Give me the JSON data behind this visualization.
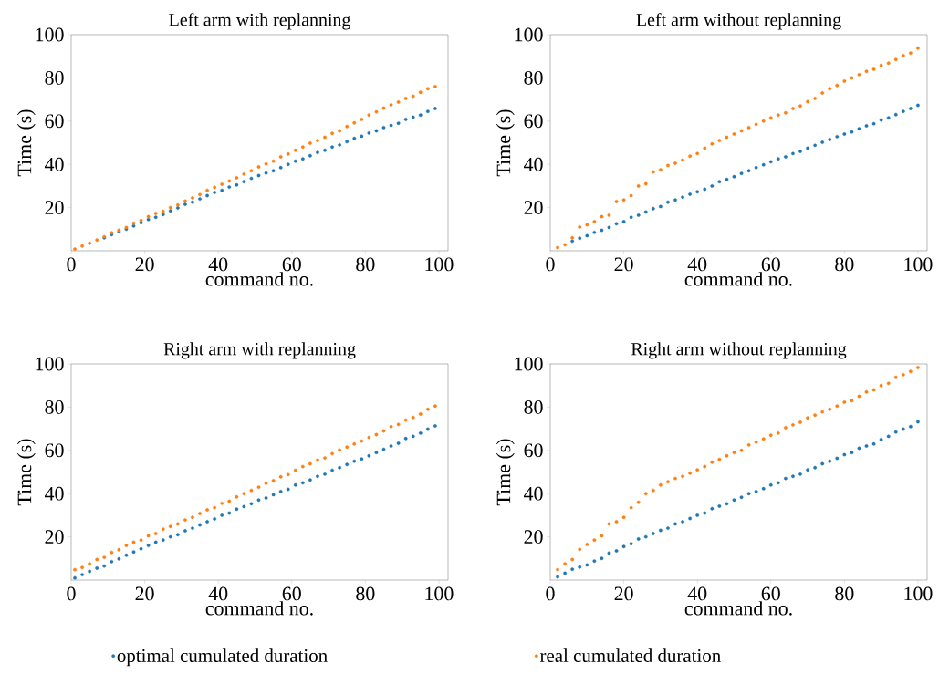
{
  "chart_data": [
    {
      "type": "scatter",
      "title": "Left arm with replanning",
      "xlabel": "command no.",
      "ylabel": "Time (s)",
      "marker": "circle",
      "xlim": [
        0,
        102.5
      ],
      "ylim": [
        0,
        100
      ],
      "xticks": [
        0,
        20,
        40,
        60,
        80,
        100
      ],
      "yticks": [
        20,
        40,
        60,
        80,
        100
      ],
      "x": [
        1,
        3,
        5,
        7,
        9,
        11,
        13,
        15,
        17,
        19,
        21,
        23,
        25,
        27,
        29,
        31,
        33,
        35,
        37,
        39,
        41,
        43,
        45,
        47,
        49,
        51,
        53,
        55,
        57,
        59,
        61,
        63,
        65,
        67,
        69,
        71,
        73,
        75,
        77,
        79,
        81,
        83,
        85,
        87,
        89,
        91,
        93,
        95,
        97,
        99
      ],
      "series": [
        {
          "color": "#1f77b4",
          "values": [
            null,
            null,
            null,
            null,
            6,
            7.5,
            8.8,
            10,
            11.5,
            13,
            14.5,
            15.5,
            16.8,
            18.5,
            19.8,
            21.5,
            22.5,
            24,
            25.5,
            27,
            28,
            29.5,
            30.5,
            32,
            33.5,
            34.8,
            36,
            37,
            38.5,
            40,
            41.5,
            42.5,
            44,
            45.5,
            46.5,
            48,
            49,
            50.5,
            52,
            53,
            54.5,
            55.5,
            57,
            58,
            59,
            60.8,
            61.8,
            62.8,
            64.5,
            65.8
          ]
        },
        {
          "color": "#ff7f0e",
          "values": [
            0.8,
            2.2,
            3.5,
            5,
            6.5,
            8.3,
            9.5,
            10.8,
            12.8,
            14,
            15.8,
            17.3,
            18.3,
            20,
            21.2,
            23,
            24.5,
            26,
            28,
            29.3,
            30.8,
            32.3,
            33.8,
            35.5,
            37,
            38.8,
            40.2,
            41.5,
            43.5,
            44.8,
            46.5,
            48,
            49.8,
            51,
            52.5,
            54.3,
            55.5,
            57.5,
            59.2,
            60.8,
            62.8,
            64.3,
            66,
            67.5,
            68.8,
            70.5,
            71.5,
            73.3,
            75,
            76
          ]
        }
      ]
    },
    {
      "type": "scatter",
      "title": "Left arm without replanning",
      "xlabel": "command no.",
      "ylabel": "Time (s)",
      "marker": "circle",
      "xlim": [
        0,
        102.5
      ],
      "ylim": [
        0,
        100
      ],
      "xticks": [
        0,
        20,
        40,
        60,
        80,
        100
      ],
      "yticks": [
        20,
        40,
        60,
        80,
        100
      ],
      "x": [
        2,
        4,
        6,
        8,
        10,
        12,
        14,
        16,
        18,
        20,
        22,
        24,
        26,
        28,
        30,
        32,
        34,
        36,
        38,
        40,
        42,
        44,
        46,
        48,
        50,
        52,
        54,
        56,
        58,
        60,
        62,
        64,
        66,
        68,
        70,
        72,
        74,
        76,
        78,
        80,
        82,
        84,
        86,
        88,
        90,
        92,
        94,
        96,
        98,
        100
      ],
      "series": [
        {
          "color": "#1f77b4",
          "values": [
            null,
            null,
            4.5,
            5.8,
            7,
            8.5,
            9.5,
            10.8,
            12.5,
            13.5,
            15.5,
            16.5,
            18,
            19.5,
            20.5,
            22.5,
            23.5,
            24.8,
            26.2,
            27.3,
            28.5,
            30,
            32,
            33,
            34.3,
            35.8,
            37,
            38.5,
            39.8,
            41.2,
            42.5,
            43.5,
            45,
            46,
            47.5,
            48.8,
            50.2,
            51.5,
            52.8,
            54,
            55,
            56.5,
            57.8,
            58.8,
            60.5,
            61.5,
            63,
            64.5,
            65.8,
            67.3
          ]
        },
        {
          "color": "#ff7f0e",
          "values": [
            1.5,
            2.8,
            6,
            11,
            12,
            13.5,
            15.8,
            16.5,
            22.8,
            23.5,
            25.5,
            30,
            31,
            36.5,
            37.5,
            39.5,
            40.5,
            42,
            43.8,
            45,
            47.5,
            49.5,
            51,
            52.5,
            54,
            55.5,
            57,
            58.5,
            60,
            61.5,
            62.8,
            63.8,
            65.8,
            67,
            69,
            70.5,
            73,
            75,
            76.5,
            78.5,
            80,
            81.5,
            83,
            84,
            85.8,
            86.8,
            88.5,
            90.3,
            91.5,
            93.8
          ]
        }
      ]
    },
    {
      "type": "scatter",
      "title": "Right arm with replanning",
      "xlabel": "command no.",
      "ylabel": "Time (s)",
      "marker": "circle",
      "legend": "bottom",
      "xlim": [
        0,
        102.5
      ],
      "ylim": [
        0,
        100
      ],
      "xticks": [
        0,
        20,
        40,
        60,
        80,
        100
      ],
      "yticks": [
        20,
        40,
        60,
        80,
        100
      ],
      "x": [
        1,
        3,
        5,
        7,
        9,
        11,
        13,
        15,
        17,
        19,
        21,
        23,
        25,
        27,
        29,
        31,
        33,
        35,
        37,
        39,
        41,
        43,
        45,
        47,
        49,
        51,
        53,
        55,
        57,
        59,
        61,
        63,
        65,
        67,
        69,
        71,
        73,
        75,
        77,
        79,
        81,
        83,
        85,
        87,
        89,
        91,
        93,
        95,
        97,
        99
      ],
      "series": [
        {
          "name": "optimal cumulated duration",
          "color": "#1f77b4",
          "values": [
            1,
            2.5,
            4,
            5.5,
            6.5,
            8.5,
            9.8,
            11.5,
            13,
            14.5,
            16,
            17.5,
            18.5,
            20,
            21,
            22.8,
            24,
            25.5,
            27,
            28.3,
            30,
            31,
            32.8,
            34,
            35.3,
            37,
            38,
            39.5,
            41,
            42,
            44,
            45,
            46.3,
            48,
            49,
            50.8,
            52,
            53.5,
            55,
            56,
            57.5,
            59,
            60.5,
            62,
            63.3,
            65.5,
            66.5,
            68,
            69.8,
            71.3
          ]
        },
        {
          "name": "real cumulated duration",
          "color": "#ff7f0e",
          "values": [
            4.8,
            5.8,
            7.5,
            9.5,
            10.5,
            12.8,
            14,
            16,
            17.5,
            18.5,
            20.5,
            21.5,
            23.5,
            24.8,
            26,
            27.8,
            29,
            30.8,
            32.5,
            33.5,
            35.5,
            36.5,
            38.5,
            40,
            41.5,
            43,
            44.8,
            46,
            47.8,
            48.8,
            50.8,
            52.5,
            53.8,
            55.5,
            56.5,
            58.5,
            60.2,
            61.5,
            63,
            64.3,
            66,
            67.3,
            69,
            71,
            72,
            74,
            75.2,
            76.8,
            79,
            80.5
          ]
        }
      ]
    },
    {
      "type": "scatter",
      "title": "Right arm without replanning",
      "xlabel": "command no.",
      "ylabel": "Time (s)",
      "marker": "circle",
      "xlim": [
        0,
        102.5
      ],
      "ylim": [
        0,
        100
      ],
      "xticks": [
        0,
        20,
        40,
        60,
        80,
        100
      ],
      "yticks": [
        20,
        40,
        60,
        80,
        100
      ],
      "x": [
        2,
        4,
        6,
        8,
        10,
        12,
        14,
        16,
        18,
        20,
        22,
        24,
        26,
        28,
        30,
        32,
        34,
        36,
        38,
        40,
        42,
        44,
        46,
        48,
        50,
        52,
        54,
        56,
        58,
        60,
        62,
        64,
        66,
        68,
        70,
        72,
        74,
        76,
        78,
        80,
        82,
        84,
        86,
        88,
        90,
        92,
        94,
        96,
        98,
        100
      ],
      "series": [
        {
          "color": "#1f77b4",
          "values": [
            1.5,
            3.2,
            5,
            6,
            7,
            8.8,
            10,
            12.5,
            13.5,
            15.5,
            16.8,
            19,
            20,
            21.5,
            23,
            24,
            26,
            27,
            28.5,
            30,
            31,
            33,
            34.2,
            35.3,
            37,
            38.3,
            40,
            41,
            42.3,
            44,
            45,
            47,
            48,
            49,
            51,
            52,
            53.8,
            55,
            56.3,
            58,
            59,
            61,
            62,
            63,
            65,
            66.5,
            68.5,
            69.8,
            71,
            73.2
          ]
        },
        {
          "color": "#ff7f0e",
          "values": [
            4.8,
            7.5,
            9.5,
            14.2,
            16.5,
            18.5,
            20.5,
            26,
            27,
            29,
            33.5,
            36,
            40,
            41.5,
            44,
            45.5,
            47,
            48,
            49.5,
            51,
            52.5,
            54.5,
            55.8,
            57.5,
            59,
            60,
            62.5,
            63.8,
            65.3,
            67,
            68,
            70.5,
            71.8,
            73,
            75,
            76.3,
            77.8,
            79,
            80.5,
            82.3,
            83,
            85,
            87,
            88,
            90,
            91,
            93.8,
            95,
            96.5,
            98.3
          ]
        }
      ]
    }
  ]
}
